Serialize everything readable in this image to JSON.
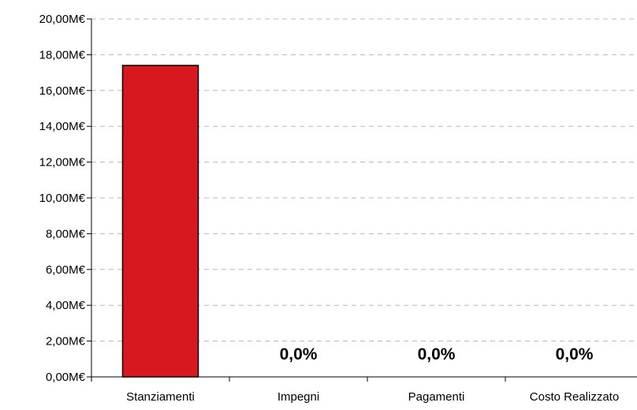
{
  "chart_data": {
    "type": "bar",
    "categories": [
      "Stanziamenti",
      "Impegni",
      "Pagamenti",
      "Costo Realizzato"
    ],
    "values": [
      17.4,
      0,
      0,
      0
    ],
    "unit": "M€",
    "data_labels": [
      "",
      "0,0%",
      "0,0%",
      "0,0%"
    ],
    "y_ticks": [
      "0,00M€",
      "2,00M€",
      "4,00M€",
      "6,00M€",
      "8,00M€",
      "10,00M€",
      "12,00M€",
      "14,00M€",
      "16,00M€",
      "18,00M€",
      "20,00M€"
    ],
    "ylim": [
      0,
      20
    ],
    "grid": true,
    "title": "",
    "xlabel": "",
    "ylabel": "",
    "bar_color": "#d7191f",
    "grid_color": "#b8b8b8"
  }
}
